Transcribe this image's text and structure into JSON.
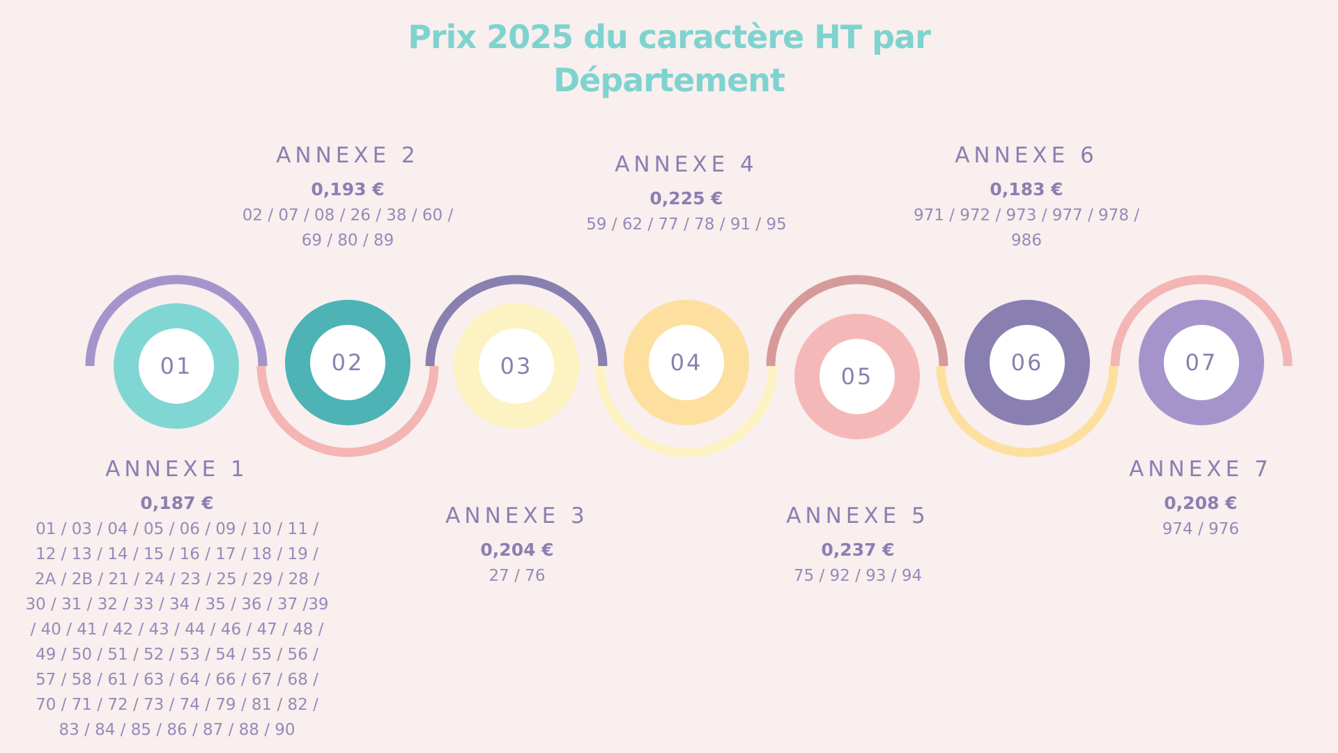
{
  "title": {
    "line1": "Prix 2025 du caractère HT par",
    "line2": "Département"
  },
  "colors": {
    "background": "#f8efee",
    "title": "#7fd3cf",
    "text": "#8a7fb1"
  },
  "steps": [
    {
      "number": "01",
      "annexe": "ANNEXE 1",
      "price": "0,187 €",
      "departments": "01 / 03 / 04 / 05 / 06 / 09 / 10 / 11 / 12 / 13 / 14 / 15 / 16 / 17 / 18 / 19 / 2A / 2B / 21 / 24 / 23 / 25 / 29 / 28 / 30 / 31 / 32 / 33 / 34 / 35 / 36 / 37 /39 / 40 / 41 / 42 / 43 / 44 / 46 / 47 / 48 / 49 / 50 / 51 / 52 / 53 / 54 / 55 / 56 / 57 / 58 / 61 / 63 / 64 / 66 / 67 / 68 / 70 / 71 / 72 / 73 / 74 / 79 / 81 / 82 / 83 / 84 / 85 / 86 / 87 / 88 / 90",
      "circle_color": "#80d6d3",
      "arc_color": "#a594cc"
    },
    {
      "number": "02",
      "annexe": "ANNEXE 2",
      "price": "0,193 €",
      "departments": "02 / 07 / 08 / 26 / 38 / 60 / 69 / 80 / 89",
      "circle_color": "#4db3b5",
      "arc_color": "#f4b5b5"
    },
    {
      "number": "03",
      "annexe": "ANNEXE 3",
      "price": "0,204 €",
      "departments": "27 / 76",
      "circle_color": "#fdf2c2",
      "arc_color": "#8a7fb1"
    },
    {
      "number": "04",
      "annexe": "ANNEXE 4",
      "price": "0,225 €",
      "departments": "59 / 62 / 77 / 78 / 91 / 95",
      "circle_color": "#fde0a0",
      "arc_color": "#fdf2c2"
    },
    {
      "number": "05",
      "annexe": "ANNEXE 5",
      "price": "0,237 €",
      "departments": "75 / 92 / 93 / 94",
      "circle_color": "#f5b8b8",
      "arc_color": "#d69a9a"
    },
    {
      "number": "06",
      "annexe": "ANNEXE 6",
      "price": "0,183 €",
      "departments": "971 / 972 / 973 / 977 / 978 / 986",
      "circle_color": "#8a7fb1",
      "arc_color": "#fde0a0"
    },
    {
      "number": "07",
      "annexe": "ANNEXE 7",
      "price": "0,208 €",
      "departments": "974 / 976",
      "circle_color": "#a594cc",
      "arc_color": "#f4b5b5"
    }
  ]
}
